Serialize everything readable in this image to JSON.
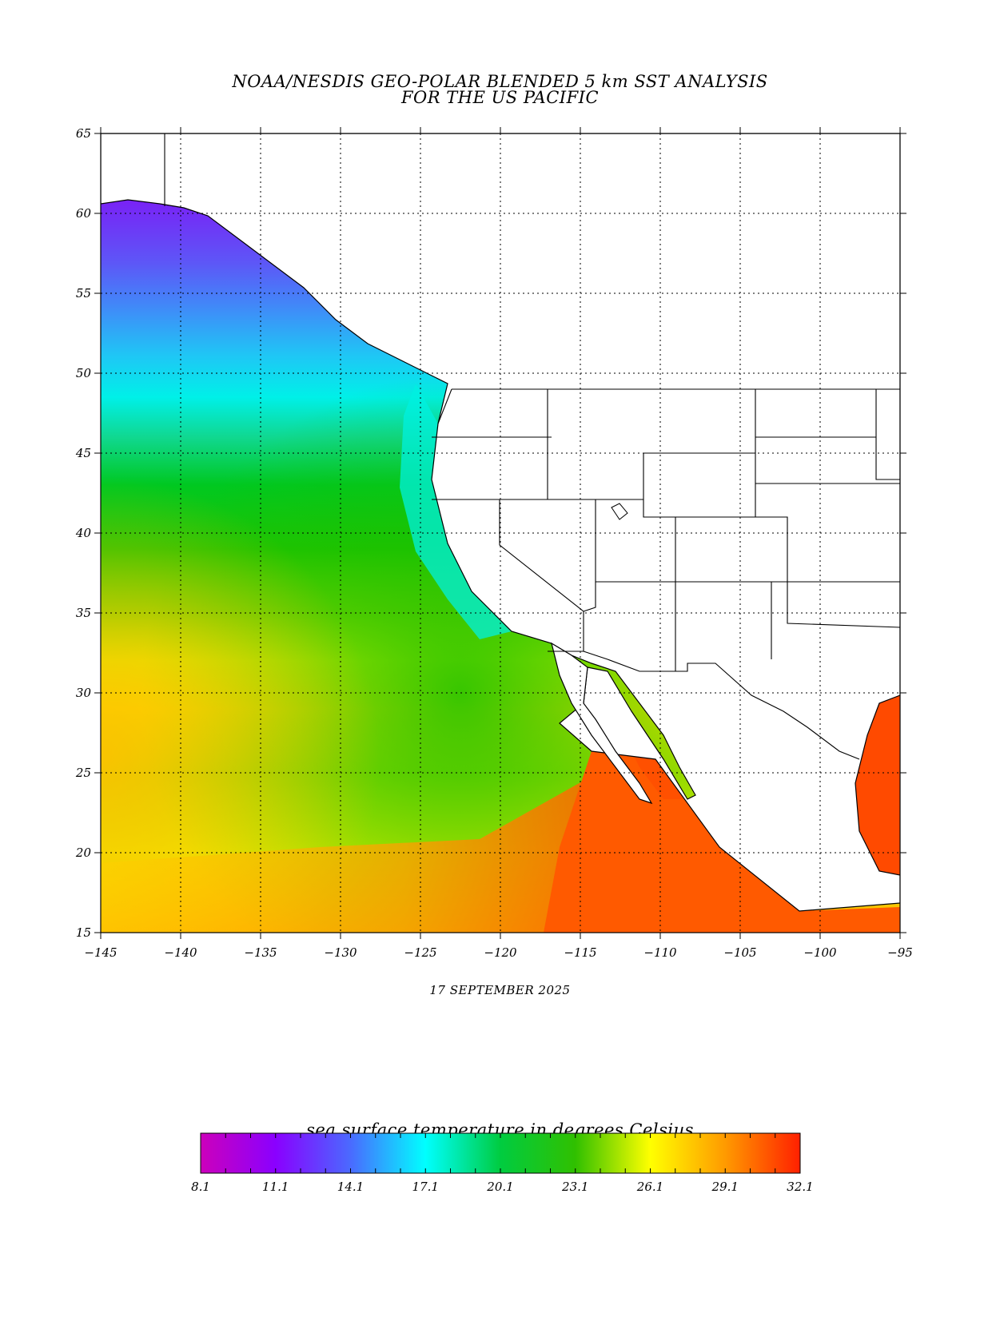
{
  "title": {
    "line1": "NOAA/NESDIS GEO-POLAR BLENDED 5 km SST ANALYSIS",
    "line2": "FOR THE US PACIFIC"
  },
  "date": "17 SEPTEMBER 2025",
  "map": {
    "lon_range": [
      -145,
      -95
    ],
    "lat_range": [
      15,
      65
    ],
    "x_ticks": [
      "-145",
      "-140",
      "-135",
      "-130",
      "-125",
      "-120",
      "-115",
      "-110",
      "-105",
      "-100",
      "-95"
    ],
    "y_ticks": [
      "15",
      "20",
      "25",
      "30",
      "35",
      "40",
      "45",
      "50",
      "55",
      "60",
      "65"
    ],
    "grid": "dotted",
    "land_color": "#ffffff"
  },
  "colorbar": {
    "title": "sea surface temperature in degrees Celsius",
    "labels": [
      "8.1",
      "11.1",
      "14.1",
      "17.1",
      "20.1",
      "23.1",
      "26.1",
      "29.1",
      "32.1"
    ],
    "range": [
      8.1,
      32.1
    ],
    "stops": [
      {
        "value": 8.1,
        "color": "#cc00bb"
      },
      {
        "value": 11.1,
        "color": "#8a00ff"
      },
      {
        "value": 14.1,
        "color": "#4a6aff"
      },
      {
        "value": 17.1,
        "color": "#00ffff"
      },
      {
        "value": 20.1,
        "color": "#00cc40"
      },
      {
        "value": 23.1,
        "color": "#30c000"
      },
      {
        "value": 26.1,
        "color": "#ffff00"
      },
      {
        "value": 29.1,
        "color": "#ff9a00"
      },
      {
        "value": 32.1,
        "color": "#ff2000"
      }
    ]
  },
  "chart_data": {
    "type": "heatmap",
    "title": "NOAA/NESDIS GEO-POLAR BLENDED 5 km SST ANALYSIS FOR THE US PACIFIC",
    "xlim": [
      -145,
      -95
    ],
    "ylim": [
      15,
      65
    ],
    "zlabel": "sea surface temperature in degrees Celsius",
    "zlim": [
      8.1,
      32.1
    ],
    "approx_sst_by_latitude": [
      {
        "lat": 60,
        "sst": 12
      },
      {
        "lat": 55,
        "sst": 13
      },
      {
        "lat": 50,
        "sst": 15
      },
      {
        "lat": 47,
        "sst": 17
      },
      {
        "lat": 42,
        "sst": 21
      },
      {
        "lat": 35,
        "sst": 24
      },
      {
        "lat": 28,
        "sst": 24
      },
      {
        "lat": 20,
        "sst": 26
      },
      {
        "lat": 16,
        "sst": 28
      }
    ]
  }
}
